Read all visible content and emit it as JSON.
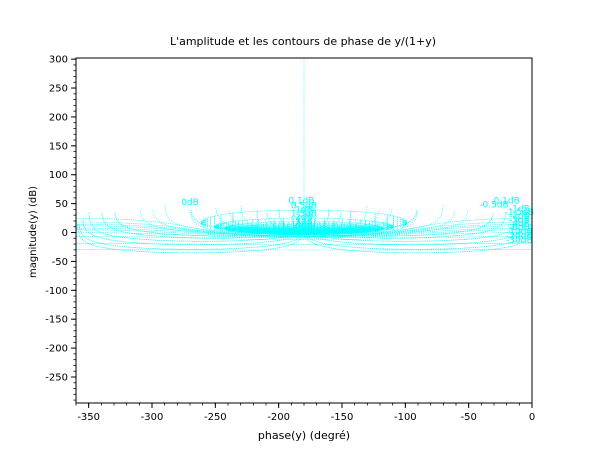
{
  "chart_data": {
    "type": "line",
    "title": "L'amplitude et les contours de phase de y/(1+y)",
    "xlabel": "phase(y) (degré)",
    "ylabel": "magnitude(y) (dB)",
    "xlim": [
      -360,
      0
    ],
    "ylim": [
      -295,
      302
    ],
    "xticks": [
      -350,
      -300,
      -250,
      -200,
      -150,
      -100,
      -50,
      0
    ],
    "yticks": [
      -250,
      -200,
      -150,
      -100,
      -50,
      0,
      50,
      100,
      150,
      200,
      250,
      300
    ],
    "grid": false,
    "line_color": "#00ffff",
    "contour_labels": [
      {
        "text": "0dB",
        "x": -270,
        "y": 48
      },
      {
        "text": "0.1dB",
        "x": -182,
        "y": 50
      },
      {
        "text": "0.5dB",
        "x": -180,
        "y": 42
      },
      {
        "text": "1dB",
        "x": -180,
        "y": 35
      },
      {
        "text": "1.5dB",
        "x": -180,
        "y": 28
      },
      {
        "text": "2dB",
        "x": -180,
        "y": 22
      },
      {
        "text": "3dB",
        "x": -180,
        "y": 15
      },
      {
        "text": "4dB",
        "x": -180,
        "y": 10
      },
      {
        "text": "6dB",
        "x": -180,
        "y": 6
      },
      {
        "text": "10dB",
        "x": -180,
        "y": 2
      },
      {
        "text": "0.1dB",
        "x": -20,
        "y": 50
      },
      {
        "text": "-0.5dB",
        "x": -30,
        "y": 43
      },
      {
        "text": "-1dB",
        "x": -10,
        "y": 36
      },
      {
        "text": "-1.5dB",
        "x": -10,
        "y": 30
      },
      {
        "text": "-2dB",
        "x": -10,
        "y": 24
      },
      {
        "text": "-3dB",
        "x": -10,
        "y": 17
      },
      {
        "text": "-4dB",
        "x": -10,
        "y": 10
      },
      {
        "text": "-6dB",
        "x": -10,
        "y": 4
      },
      {
        "text": "-10dB",
        "x": -10,
        "y": -3
      },
      {
        "text": "-20dB",
        "x": -10,
        "y": -10
      },
      {
        "text": "-30dB",
        "x": -10,
        "y": -18
      }
    ],
    "gain_contours_db": [
      0.1,
      0.5,
      1,
      1.5,
      2,
      3,
      4,
      6,
      10,
      -0.5,
      -1,
      -1.5,
      -2,
      -3,
      -4,
      -6,
      -10,
      -20,
      -30
    ],
    "phase_contours_deg": [
      -1,
      -2,
      -5,
      -10,
      -20,
      -30,
      -50,
      -70,
      -90,
      -120,
      -150,
      -160,
      -170,
      -175,
      -178,
      -179
    ]
  }
}
